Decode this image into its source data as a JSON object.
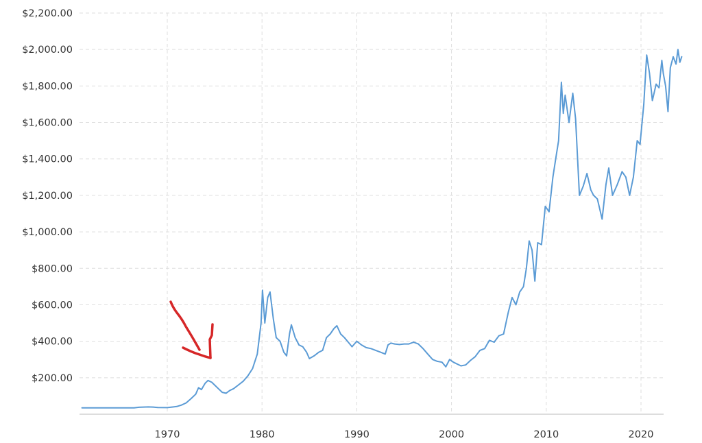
{
  "chart_data": {
    "type": "line",
    "title": "",
    "xlabel": "",
    "ylabel": "",
    "xlim": [
      1961,
      2022.3
    ],
    "ylim": [
      0,
      2200
    ],
    "grid": true,
    "line_color": "#5b9bd5",
    "annotation_color": "#d62728",
    "x_ticks": [
      {
        "value": 1970,
        "label": "1970"
      },
      {
        "value": 1980,
        "label": "1980"
      },
      {
        "value": 1990,
        "label": "1990"
      },
      {
        "value": 2000,
        "label": "2000"
      },
      {
        "value": 2010,
        "label": "2010"
      },
      {
        "value": 2020,
        "label": "2020"
      }
    ],
    "y_ticks": [
      {
        "value": 200,
        "label": "$200.00"
      },
      {
        "value": 400,
        "label": "$400.00"
      },
      {
        "value": 600,
        "label": "$600.00"
      },
      {
        "value": 800,
        "label": "$800.00"
      },
      {
        "value": 1000,
        "label": "$1,000.00"
      },
      {
        "value": 1200,
        "label": "$1,200.00"
      },
      {
        "value": 1400,
        "label": "$1,400.00"
      },
      {
        "value": 1600,
        "label": "$1,600.00"
      },
      {
        "value": 1800,
        "label": "$1,800.00"
      },
      {
        "value": 2000,
        "label": "$2,000.00"
      },
      {
        "value": 2200,
        "label": "$2,200.00"
      }
    ],
    "series": [
      {
        "points": [
          [
            1961.0,
            35
          ],
          [
            1966.5,
            35
          ],
          [
            1967.0,
            38
          ],
          [
            1968.0,
            40
          ],
          [
            1968.5,
            39
          ],
          [
            1969.0,
            37
          ],
          [
            1970.0,
            36
          ],
          [
            1970.5,
            39
          ],
          [
            1971.0,
            42
          ],
          [
            1971.5,
            50
          ],
          [
            1972.0,
            62
          ],
          [
            1972.5,
            85
          ],
          [
            1973.0,
            110
          ],
          [
            1973.3,
            145
          ],
          [
            1973.6,
            135
          ],
          [
            1974.0,
            170
          ],
          [
            1974.3,
            185
          ],
          [
            1974.7,
            175
          ],
          [
            1975.0,
            160
          ],
          [
            1975.4,
            140
          ],
          [
            1975.8,
            120
          ],
          [
            1976.2,
            115
          ],
          [
            1976.6,
            130
          ],
          [
            1977.0,
            140
          ],
          [
            1977.5,
            160
          ],
          [
            1978.0,
            180
          ],
          [
            1978.5,
            210
          ],
          [
            1979.0,
            250
          ],
          [
            1979.5,
            330
          ],
          [
            1979.9,
            500
          ],
          [
            1980.05,
            680
          ],
          [
            1980.3,
            500
          ],
          [
            1980.6,
            640
          ],
          [
            1980.85,
            670
          ],
          [
            1981.2,
            520
          ],
          [
            1981.5,
            420
          ],
          [
            1981.9,
            400
          ],
          [
            1982.3,
            340
          ],
          [
            1982.6,
            320
          ],
          [
            1982.9,
            440
          ],
          [
            1983.1,
            490
          ],
          [
            1983.5,
            420
          ],
          [
            1983.9,
            380
          ],
          [
            1984.3,
            370
          ],
          [
            1984.7,
            340
          ],
          [
            1985.0,
            305
          ],
          [
            1985.5,
            320
          ],
          [
            1986.0,
            340
          ],
          [
            1986.4,
            350
          ],
          [
            1986.8,
            420
          ],
          [
            1987.2,
            440
          ],
          [
            1987.6,
            470
          ],
          [
            1987.9,
            485
          ],
          [
            1988.3,
            440
          ],
          [
            1988.7,
            420
          ],
          [
            1989.1,
            395
          ],
          [
            1989.5,
            370
          ],
          [
            1990.0,
            400
          ],
          [
            1990.5,
            380
          ],
          [
            1991.0,
            365
          ],
          [
            1991.5,
            360
          ],
          [
            1992.0,
            350
          ],
          [
            1992.5,
            340
          ],
          [
            1993.0,
            330
          ],
          [
            1993.3,
            380
          ],
          [
            1993.6,
            390
          ],
          [
            1994.0,
            385
          ],
          [
            1994.5,
            382
          ],
          [
            1995.0,
            385
          ],
          [
            1995.5,
            385
          ],
          [
            1996.0,
            395
          ],
          [
            1996.5,
            385
          ],
          [
            1997.0,
            360
          ],
          [
            1997.5,
            330
          ],
          [
            1998.0,
            300
          ],
          [
            1998.5,
            290
          ],
          [
            1999.0,
            285
          ],
          [
            1999.4,
            260
          ],
          [
            1999.8,
            300
          ],
          [
            2000.2,
            285
          ],
          [
            2000.6,
            275
          ],
          [
            2001.0,
            265
          ],
          [
            2001.5,
            270
          ],
          [
            2002.0,
            295
          ],
          [
            2002.5,
            315
          ],
          [
            2003.0,
            350
          ],
          [
            2003.5,
            360
          ],
          [
            2004.0,
            405
          ],
          [
            2004.5,
            395
          ],
          [
            2005.0,
            430
          ],
          [
            2005.5,
            440
          ],
          [
            2006.0,
            560
          ],
          [
            2006.4,
            640
          ],
          [
            2006.8,
            600
          ],
          [
            2007.2,
            670
          ],
          [
            2007.6,
            700
          ],
          [
            2007.9,
            800
          ],
          [
            2008.2,
            950
          ],
          [
            2008.5,
            900
          ],
          [
            2008.8,
            730
          ],
          [
            2009.1,
            940
          ],
          [
            2009.5,
            930
          ],
          [
            2009.9,
            1140
          ],
          [
            2010.3,
            1110
          ],
          [
            2010.7,
            1300
          ],
          [
            2011.0,
            1400
          ],
          [
            2011.3,
            1500
          ],
          [
            2011.6,
            1820
          ],
          [
            2011.8,
            1650
          ],
          [
            2012.0,
            1750
          ],
          [
            2012.4,
            1600
          ],
          [
            2012.8,
            1760
          ],
          [
            2013.1,
            1620
          ],
          [
            2013.5,
            1200
          ],
          [
            2013.9,
            1250
          ],
          [
            2014.3,
            1320
          ],
          [
            2014.7,
            1230
          ],
          [
            2015.0,
            1200
          ],
          [
            2015.4,
            1180
          ],
          [
            2015.9,
            1070
          ],
          [
            2016.3,
            1260
          ],
          [
            2016.6,
            1350
          ],
          [
            2017.0,
            1200
          ],
          [
            2017.5,
            1260
          ],
          [
            2018.0,
            1330
          ],
          [
            2018.4,
            1300
          ],
          [
            2018.8,
            1200
          ],
          [
            2019.2,
            1300
          ],
          [
            2019.6,
            1500
          ],
          [
            2019.9,
            1480
          ],
          [
            2020.3,
            1700
          ],
          [
            2020.6,
            1970
          ],
          [
            2020.9,
            1870
          ],
          [
            2021.2,
            1720
          ],
          [
            2021.6,
            1810
          ],
          [
            2021.9,
            1790
          ],
          [
            2022.2,
            1940
          ],
          [
            2022.35,
            1870
          ],
          [
            2022.6,
            1800
          ],
          [
            2022.85,
            1660
          ],
          [
            2023.1,
            1900
          ],
          [
            2023.4,
            1960
          ],
          [
            2023.7,
            1920
          ],
          [
            2023.9,
            2000
          ],
          [
            2024.1,
            1930
          ],
          [
            2024.3,
            1960
          ]
        ]
      }
    ]
  }
}
